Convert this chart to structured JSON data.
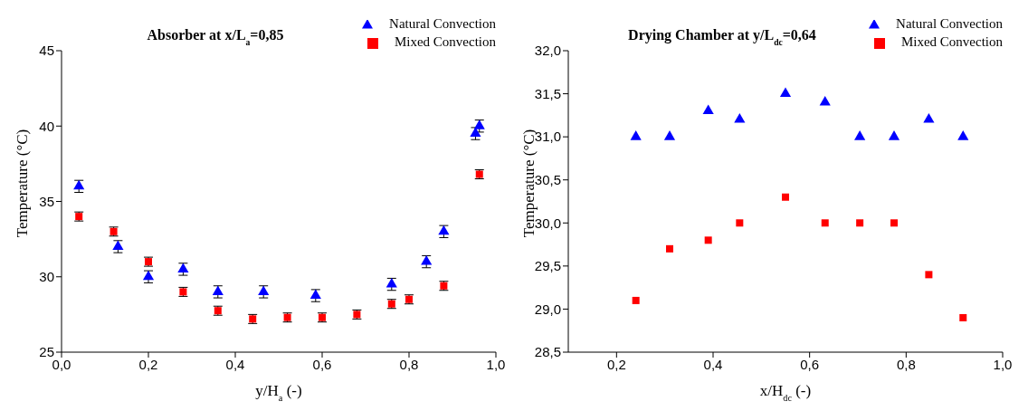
{
  "chart_data": [
    {
      "type": "scatter",
      "title": "Absorber at x/L$_{a}$=0,85",
      "xlabel": "y/H$_{a}$ (-)",
      "ylabel": "Temperature (°C)",
      "xlim": [
        0,
        1
      ],
      "xticks": [
        {
          "value": 0,
          "label": "0,0"
        },
        {
          "value": 0.2,
          "label": "0,2"
        },
        {
          "value": 0.4,
          "label": "0,4"
        },
        {
          "value": 0.6,
          "label": "0,6"
        },
        {
          "value": 0.8,
          "label": "0,8"
        },
        {
          "value": 1,
          "label": "1,0"
        }
      ],
      "ylim": [
        25,
        45
      ],
      "yticks": [
        25,
        30,
        35,
        40,
        45
      ],
      "grid": false,
      "legend": "top right",
      "series": [
        {
          "name": "Natural Convection",
          "color": "#0000ff",
          "marker": "triangle",
          "x": [
            0.04,
            0.13,
            0.2,
            0.28,
            0.36,
            0.465,
            0.585,
            0.76,
            0.84,
            0.88,
            0.953,
            0.962
          ],
          "values": [
            36,
            32,
            30,
            30.5,
            29,
            29,
            28.75,
            29.5,
            31,
            33,
            39.5,
            40
          ],
          "errors": [
            0.4,
            0.4,
            0.4,
            0.4,
            0.4,
            0.4,
            0.4,
            0.4,
            0.4,
            0.4,
            0.4,
            0.4
          ]
        },
        {
          "name": "Mixed Convection",
          "color": "#ff0000",
          "marker": "square",
          "x": [
            0.04,
            0.12,
            0.2,
            0.28,
            0.36,
            0.44,
            0.52,
            0.6,
            0.68,
            0.76,
            0.8,
            0.88,
            0.962
          ],
          "values": [
            34,
            33,
            31,
            29,
            27.75,
            27.2,
            27.3,
            27.3,
            27.5,
            28.2,
            28.5,
            29.4,
            36.8
          ],
          "errors": [
            0.3,
            0.3,
            0.3,
            0.3,
            0.3,
            0.3,
            0.3,
            0.3,
            0.3,
            0.3,
            0.3,
            0.3,
            0.3
          ]
        }
      ]
    },
    {
      "type": "scatter",
      "title": "Drying Chamber at y/L$_{dc}$=0,64",
      "xlabel": "x/H$_{dc}$ (-)",
      "ylabel": "Temperature (°C)",
      "xlim": [
        0.1,
        1
      ],
      "xticks": [
        {
          "value": 0.2,
          "label": "0,2"
        },
        {
          "value": 0.4,
          "label": "0,4"
        },
        {
          "value": 0.6,
          "label": "0,6"
        },
        {
          "value": 0.8,
          "label": "0,8"
        },
        {
          "value": 1,
          "label": "1,0"
        }
      ],
      "ylim": [
        28.5,
        32
      ],
      "yticks": [
        {
          "value": 28.5,
          "label": "28,5"
        },
        {
          "value": 29,
          "label": "29,0"
        },
        {
          "value": 29.5,
          "label": "29,5"
        },
        {
          "value": 30,
          "label": "30,0"
        },
        {
          "value": 30.5,
          "label": "30,5"
        },
        {
          "value": 31,
          "label": "31,0"
        },
        {
          "value": 31.5,
          "label": "31,5"
        },
        {
          "value": 32,
          "label": "32,0"
        }
      ],
      "grid": false,
      "legend": "top right",
      "series": [
        {
          "name": "Natural Convection",
          "color": "#0000ff",
          "marker": "triangle",
          "x": [
            0.24,
            0.31,
            0.39,
            0.455,
            0.55,
            0.632,
            0.704,
            0.775,
            0.847,
            0.918
          ],
          "values": [
            31,
            31,
            31.3,
            31.2,
            31.5,
            31.4,
            31,
            31,
            31.2,
            31
          ]
        },
        {
          "name": "Mixed Convection",
          "color": "#ff0000",
          "marker": "square",
          "x": [
            0.24,
            0.31,
            0.39,
            0.455,
            0.55,
            0.632,
            0.704,
            0.775,
            0.847,
            0.918
          ],
          "values": [
            29.1,
            29.7,
            29.8,
            30,
            30.3,
            30,
            30,
            30,
            29.4,
            28.9
          ]
        }
      ]
    }
  ]
}
